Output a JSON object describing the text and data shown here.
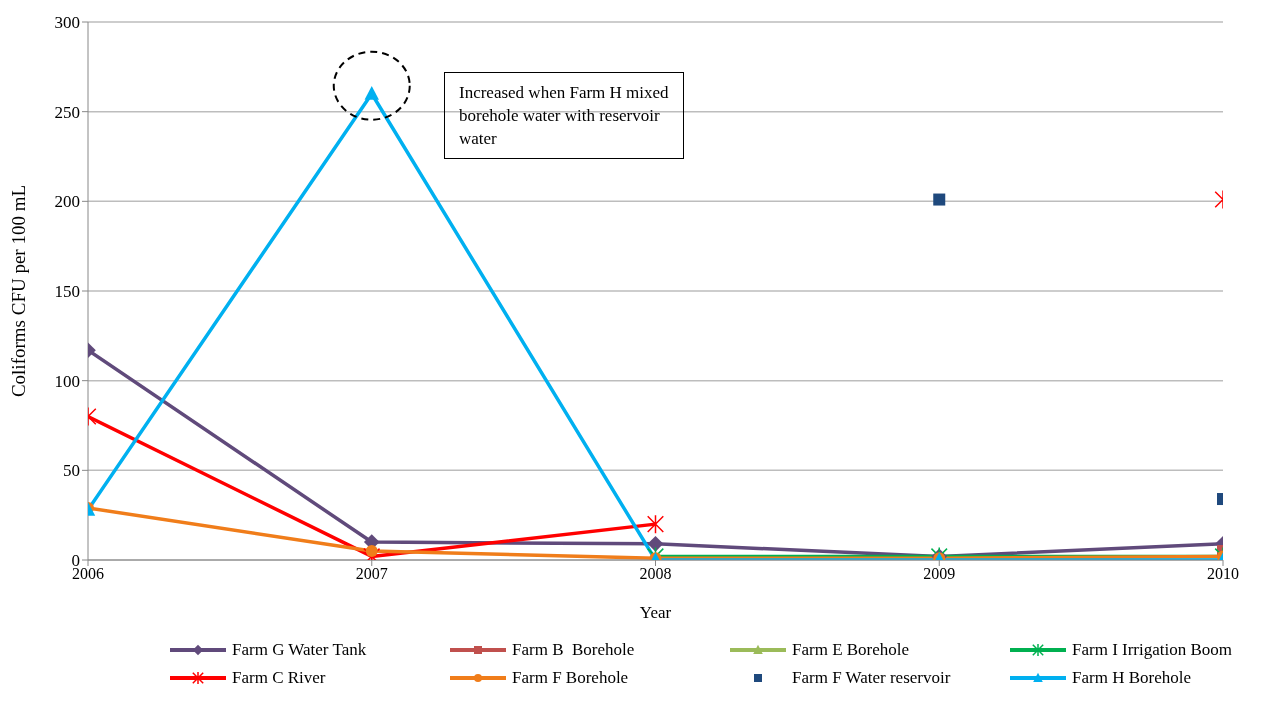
{
  "chart_data": {
    "type": "line",
    "xlabel": "Year",
    "ylabel": "Coliforms CFU per 100 mL",
    "categories": [
      "2006",
      "2007",
      "2008",
      "2009",
      "2010"
    ],
    "ylim": [
      0,
      300
    ],
    "yticks": [
      0,
      50,
      100,
      150,
      200,
      250,
      300
    ],
    "grid": "y",
    "legend": "bottom",
    "line_style": "solid",
    "annotations": [
      "Increased when Farm H mixed borehole water with reservoir water"
    ],
    "series": [
      {
        "name": "Farm G Water Tank",
        "color": "#604a7b",
        "marker": "diamond",
        "values": [
          117,
          10,
          9,
          2,
          9
        ]
      },
      {
        "name": "Farm B  Borehole",
        "color": "#c0504d",
        "marker": "square",
        "values": [
          null,
          null,
          null,
          null,
          5
        ]
      },
      {
        "name": "Farm E Borehole",
        "color": "#9bbb59",
        "marker": "triangle",
        "values": [
          null,
          null,
          null,
          null,
          null
        ]
      },
      {
        "name": "Farm I Irrigation Boom",
        "color": "#00b050",
        "marker": "cross",
        "values": [
          null,
          null,
          2,
          2,
          2
        ]
      },
      {
        "name": "Farm C River",
        "color": "#ff0000",
        "marker": "cross",
        "values": [
          80,
          2,
          20,
          null,
          201
        ]
      },
      {
        "name": "Farm F Borehole",
        "color": "#f07d1a",
        "marker": "circle",
        "values": [
          29,
          5,
          1,
          1,
          2
        ]
      },
      {
        "name": "Farm F Water reservoir",
        "type": "scatter",
        "color": "#1f497d",
        "marker": "square",
        "values": [
          null,
          null,
          null,
          201,
          34
        ]
      },
      {
        "name": "Farm H Borehole",
        "color": "#00b0f0",
        "marker": "triangle",
        "values": [
          28,
          260,
          0,
          0,
          0
        ]
      }
    ]
  }
}
